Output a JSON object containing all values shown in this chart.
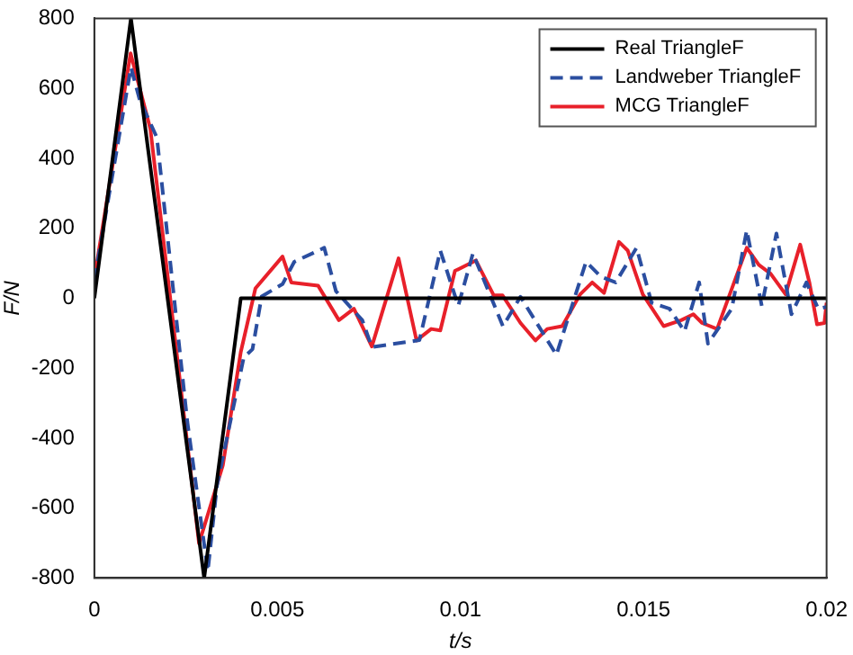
{
  "chart_data": {
    "type": "line",
    "xlabel": "t/s",
    "ylabel": "F/N",
    "xlim": [
      0,
      0.02
    ],
    "ylim": [
      -800,
      800
    ],
    "xticks": [
      0,
      0.005,
      0.01,
      0.015,
      0.02
    ],
    "yticks": [
      -800,
      -600,
      -400,
      -200,
      0,
      200,
      400,
      600,
      800
    ],
    "grid": false,
    "legend": "top right",
    "marker": "none",
    "series": [
      {
        "name": "Real TriangleF",
        "color": "#000000",
        "line_style": "solid",
        "x": [
          0,
          0.001,
          0.003,
          0.004,
          0.02
        ],
        "values": [
          0,
          800,
          -800,
          0,
          0
        ]
      },
      {
        "name": "Landweber TriangleF",
        "color": "#2b4ea0",
        "line_style": "dashed",
        "x": [
          0,
          0.001,
          0.00124,
          0.00171,
          0.00254,
          0.0031,
          0.00335,
          0.00408,
          0.00432,
          0.00457,
          0.00514,
          0.00546,
          0.00628,
          0.0066,
          0.00732,
          0.00758,
          0.00888,
          0.00945,
          0.00994,
          0.01034,
          0.01116,
          0.01164,
          0.01262,
          0.01343,
          0.01384,
          0.01424,
          0.01481,
          0.01522,
          0.01571,
          0.01612,
          0.01652,
          0.01676,
          0.01741,
          0.01782,
          0.01823,
          0.01863,
          0.01904,
          0.01945,
          0.01977,
          0.02
        ],
        "values": [
          50,
          660,
          567,
          459,
          -353,
          -780,
          -536,
          -170,
          -146,
          5,
          40,
          104,
          144,
          20,
          -63,
          -140,
          -120,
          136,
          -22,
          128,
          -80,
          4,
          -162,
          104,
          61,
          45,
          144,
          -13,
          -30,
          -95,
          45,
          -130,
          -30,
          194,
          -22,
          185,
          -46,
          45,
          -30,
          -25
        ]
      },
      {
        "name": "MCG TriangleF",
        "color": "#e8202a",
        "line_style": "solid",
        "x": [
          0,
          0.00099,
          0.00153,
          0.00286,
          0.00351,
          0.004,
          0.0044,
          0.00514,
          0.00538,
          0.00611,
          0.00668,
          0.00709,
          0.00758,
          0.00831,
          0.0088,
          0.0092,
          0.00945,
          0.00985,
          0.01042,
          0.01091,
          0.01115,
          0.01164,
          0.01205,
          0.01237,
          0.01278,
          0.01327,
          0.0136,
          0.01392,
          0.01433,
          0.01457,
          0.01498,
          0.01555,
          0.01603,
          0.01636,
          0.0166,
          0.01701,
          0.01782,
          0.01815,
          0.01847,
          0.01888,
          0.01928,
          0.01953,
          0.01974,
          0.01994,
          0.02
        ],
        "values": [
          55,
          700,
          484,
          -701,
          -478,
          -154,
          28,
          119,
          45,
          36,
          -63,
          -30,
          -138,
          114,
          -121,
          -88,
          -92,
          78,
          108,
          8,
          8,
          -71,
          -121,
          -88,
          -80,
          11,
          45,
          15,
          161,
          136,
          11,
          -80,
          -63,
          -46,
          -71,
          -88,
          144,
          95,
          70,
          11,
          153,
          45,
          -75,
          -71,
          -13
        ]
      }
    ]
  }
}
